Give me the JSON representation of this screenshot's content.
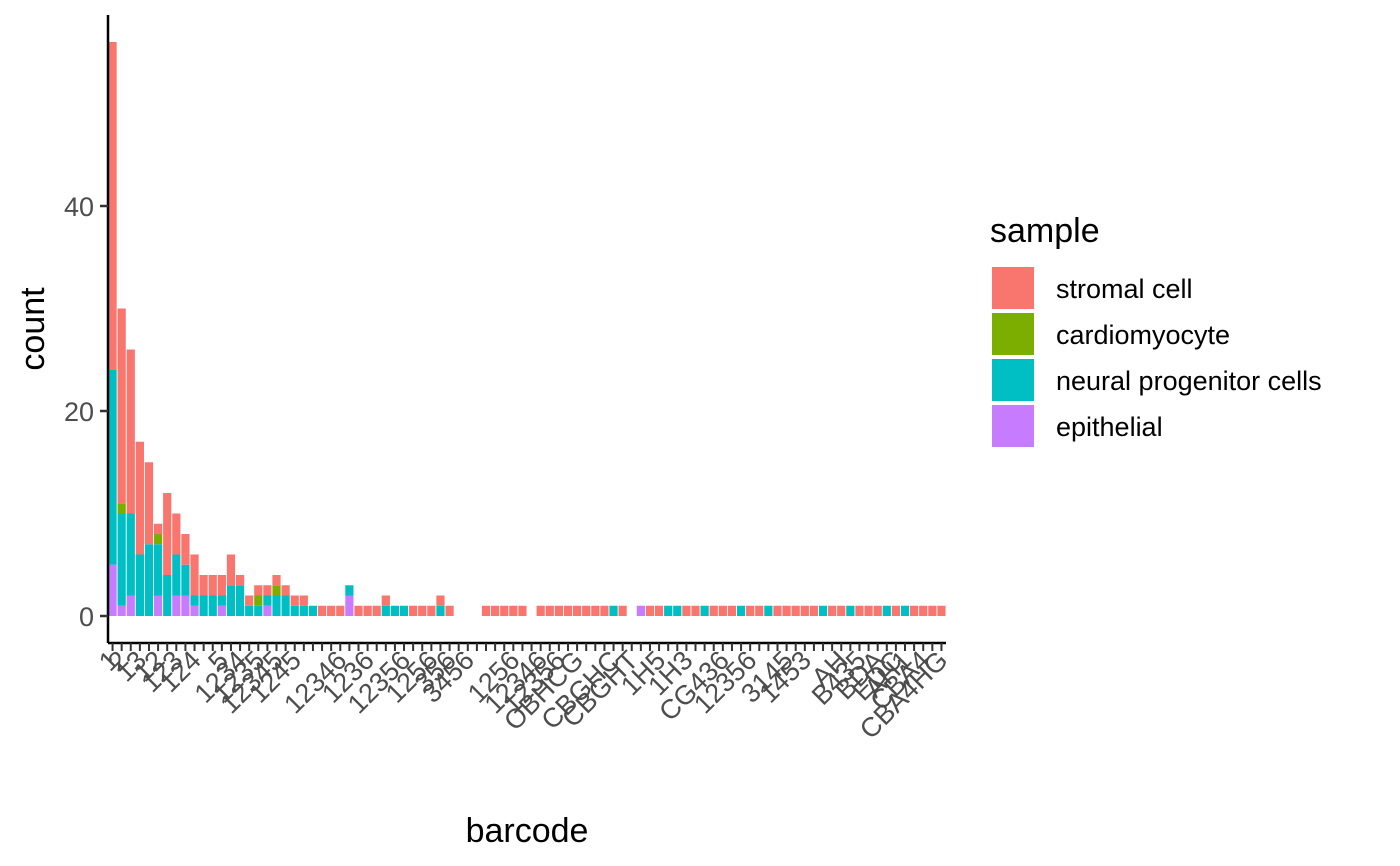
{
  "chart_data": {
    "type": "bar",
    "stacked": true,
    "xlabel": "barcode",
    "ylabel": "count",
    "ylim": [
      0,
      58
    ],
    "y_ticks": [
      0,
      20,
      40
    ],
    "grid": false,
    "legend": {
      "title": "sample",
      "placement": "right",
      "entries": [
        {
          "name": "stromal cell",
          "color": "#F8766D"
        },
        {
          "name": "cardiomyocyte",
          "color": "#7CAE00"
        },
        {
          "name": "neural progenitor cells",
          "color": "#00BFC4"
        },
        {
          "name": "epithelial",
          "color": "#C77CFF"
        }
      ]
    },
    "visible_tick_labels": [
      {
        "category_index": 0,
        "text": "1"
      },
      {
        "category_index": 1,
        "text": "2"
      },
      {
        "category_index": 3,
        "text": "13"
      },
      {
        "category_index": 5,
        "text": "12"
      },
      {
        "category_index": 7,
        "text": "123"
      },
      {
        "category_index": 9,
        "text": "124"
      },
      {
        "category_index": 12,
        "text": "5"
      },
      {
        "category_index": 14,
        "text": "1234"
      },
      {
        "category_index": 16,
        "text": "1235"
      },
      {
        "category_index": 18,
        "text": "12345"
      },
      {
        "category_index": 20,
        "text": "1245"
      },
      {
        "category_index": 25,
        "text": "12346"
      },
      {
        "category_index": 28,
        "text": "1236"
      },
      {
        "category_index": 32,
        "text": "12356"
      },
      {
        "category_index": 35,
        "text": "1256"
      },
      {
        "category_index": 37,
        "text": "356"
      },
      {
        "category_index": 39,
        "text": "3456"
      },
      {
        "category_index": 44,
        "text": "1256"
      },
      {
        "category_index": 47,
        "text": "12346"
      },
      {
        "category_index": 49,
        "text": "12356"
      },
      {
        "category_index": 51,
        "text": "OBHCG"
      },
      {
        "category_index": 55,
        "text": "CBGHC"
      },
      {
        "category_index": 57,
        "text": "CBGHT"
      },
      {
        "category_index": 60,
        "text": "1H5"
      },
      {
        "category_index": 63,
        "text": "1H3"
      },
      {
        "category_index": 67,
        "text": "CG436"
      },
      {
        "category_index": 70,
        "text": "12356"
      },
      {
        "category_index": 74,
        "text": "3145"
      },
      {
        "category_index": 76,
        "text": "1453"
      },
      {
        "category_index": 80,
        "text": "AH"
      },
      {
        "category_index": 82,
        "text": "B435"
      },
      {
        "category_index": 84,
        "text": "BDA"
      },
      {
        "category_index": 86,
        "text": "EDC"
      },
      {
        "category_index": 87,
        "text": "AH1"
      },
      {
        "category_index": 89,
        "text": "CBA4"
      },
      {
        "category_index": 91,
        "text": "CBA4HG"
      }
    ],
    "series": [
      {
        "name": "stromal cell",
        "values": [
          32,
          19,
          16,
          11,
          8,
          1,
          8,
          4,
          3,
          4,
          2,
          2,
          2,
          3,
          1,
          1,
          1,
          1,
          1,
          1,
          1,
          1,
          0,
          1,
          1,
          1,
          0,
          1,
          1,
          1,
          1,
          0,
          0,
          1,
          1,
          1,
          1,
          1,
          0,
          0,
          0,
          1,
          1,
          1,
          1,
          1,
          0,
          1,
          1,
          1,
          1,
          1,
          1,
          1,
          1,
          0,
          1,
          0,
          0,
          1,
          1,
          0,
          0,
          1,
          1,
          0,
          1,
          1,
          1,
          0,
          1,
          1,
          0,
          1,
          1,
          1,
          1,
          1,
          0,
          1,
          1,
          0,
          1,
          1,
          1,
          0,
          1,
          0,
          1,
          1,
          1,
          1
        ]
      },
      {
        "name": "cardiomyocyte",
        "values": [
          0,
          1,
          0,
          0,
          0,
          1,
          0,
          0,
          0,
          0,
          0,
          0,
          0,
          0,
          0,
          0,
          1,
          0,
          1,
          0,
          0,
          0,
          0,
          0,
          0,
          0,
          0,
          0,
          0,
          0,
          0,
          0,
          0,
          0,
          0,
          0,
          0,
          0,
          0,
          0,
          0,
          0,
          0,
          0,
          0,
          0,
          0,
          0,
          0,
          0,
          0,
          0,
          0,
          0,
          0,
          0,
          0,
          0,
          0,
          0,
          0,
          0,
          0,
          0,
          0,
          0,
          0,
          0,
          0,
          0,
          0,
          0,
          0,
          0,
          0,
          0,
          0,
          0,
          0,
          0,
          0,
          0,
          0,
          0,
          0,
          0,
          0,
          0,
          0,
          0,
          0,
          0
        ]
      },
      {
        "name": "neural progenitor cells",
        "values": [
          19,
          9,
          8,
          6,
          7,
          5,
          4,
          4,
          3,
          1,
          2,
          2,
          1,
          3,
          3,
          1,
          1,
          1,
          2,
          2,
          1,
          1,
          1,
          0,
          0,
          0,
          1,
          0,
          0,
          0,
          1,
          1,
          1,
          0,
          0,
          0,
          1,
          0,
          0,
          0,
          0,
          0,
          0,
          0,
          0,
          0,
          0,
          0,
          0,
          0,
          0,
          0,
          0,
          0,
          0,
          1,
          0,
          0,
          0,
          0,
          0,
          1,
          1,
          0,
          0,
          1,
          0,
          0,
          0,
          1,
          0,
          0,
          1,
          0,
          0,
          0,
          0,
          0,
          1,
          0,
          0,
          1,
          0,
          0,
          0,
          1,
          0,
          1,
          0,
          0,
          0,
          0
        ]
      },
      {
        "name": "epithelial",
        "values": [
          5,
          1,
          2,
          0,
          0,
          2,
          0,
          2,
          2,
          1,
          0,
          0,
          1,
          0,
          0,
          0,
          0,
          1,
          0,
          0,
          0,
          0,
          0,
          0,
          0,
          0,
          2,
          0,
          0,
          0,
          0,
          0,
          0,
          0,
          0,
          0,
          0,
          0,
          0,
          0,
          0,
          0,
          0,
          0,
          0,
          0,
          0,
          0,
          0,
          0,
          0,
          0,
          0,
          0,
          0,
          0,
          0,
          0,
          1,
          0,
          0,
          0,
          0,
          0,
          0,
          0,
          0,
          0,
          0,
          0,
          0,
          0,
          0,
          0,
          0,
          0,
          0,
          0,
          0,
          0,
          0,
          0,
          0,
          0,
          0,
          0,
          0,
          0,
          0,
          0,
          0,
          0
        ]
      }
    ]
  }
}
